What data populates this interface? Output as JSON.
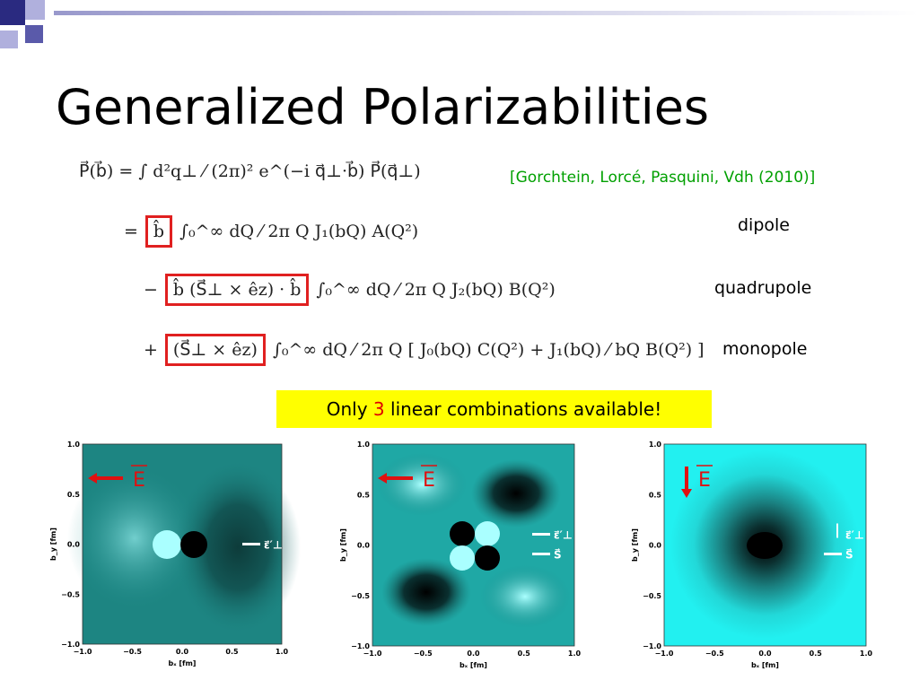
{
  "title": "Generalized Polarizabilities",
  "reference": "[Gorchtein, Lorcé, Pasquini, Vdh (2010)]",
  "equations": [
    {
      "prefix": "P⃗(b⃗) = ∫ d²q⊥ ⁄ (2π)² e^(−i q⃗⊥·b⃗) P⃗(q⃗⊥)",
      "boxed": null,
      "rest": null
    },
    {
      "prefix": "=",
      "boxed": "b̂",
      "rest": "∫₀^∞ dQ ⁄ 2π  Q J₁(bQ) A(Q²)"
    },
    {
      "prefix": "−",
      "boxed": "b̂ (S⃗⊥ × êz) · b̂",
      "rest": "∫₀^∞ dQ ⁄ 2π  Q J₂(bQ) B(Q²)"
    },
    {
      "prefix": "+",
      "boxed": "(S⃗⊥ × êz)",
      "rest": "∫₀^∞ dQ ⁄ 2π  Q [ J₀(bQ) C(Q²) + J₁(bQ) ⁄ bQ  B(Q²) ]"
    }
  ],
  "terms": [
    "dipole",
    "quadrupole",
    "monopole"
  ],
  "note": {
    "before": "Only ",
    "highlight": "3",
    "after": " linear combinations available!"
  },
  "plot_axes": {
    "ticks": [
      "−1.0",
      "−0.5",
      "0.0",
      "0.5",
      "1.0"
    ],
    "x_label": "bₓ [fm]",
    "y_label": "b_y [fm]"
  },
  "plots": [
    {
      "field": "E",
      "vectors": [
        "ε⃗′⊥"
      ]
    },
    {
      "field": "E",
      "vectors": [
        "ε⃗′⊥",
        "S⃗"
      ]
    },
    {
      "field": "E",
      "vectors": [
        "ε⃗′⊥",
        "S⃗"
      ]
    }
  ]
}
